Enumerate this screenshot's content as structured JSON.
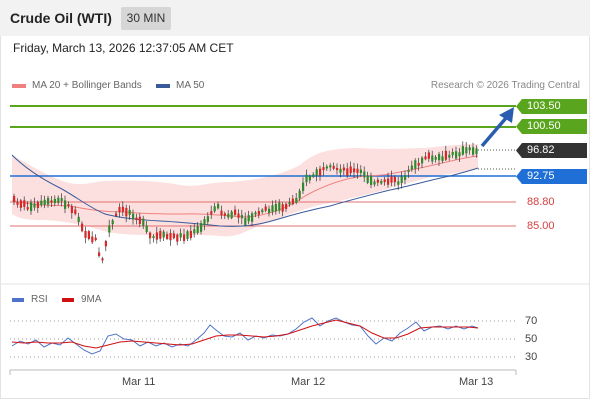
{
  "header": {
    "title": "Crude Oil (WTI)",
    "interval": "30 MIN"
  },
  "timestamp": "Friday, March 13, 2026 12:37:05 AM CET",
  "legend": {
    "ma20": {
      "label": "MA 20 + Bollinger Bands",
      "color": "#f08080"
    },
    "ma50": {
      "label": "MA 50",
      "color": "#3a5a9a"
    }
  },
  "copyright": "Research © 2026 Trading Central",
  "price_levels": [
    {
      "value": "103.50",
      "kind": "target",
      "color": "#5aa51e"
    },
    {
      "value": "100.50",
      "kind": "resistance",
      "color": "#5aa51e"
    },
    {
      "value": "96.82",
      "kind": "last",
      "color": "#333333"
    },
    {
      "value": "92.75",
      "kind": "pivot",
      "color": "#1f6fd6"
    },
    {
      "value": "88.80",
      "kind": "support",
      "color": "#d94040"
    },
    {
      "value": "85.00",
      "kind": "support",
      "color": "#d94040"
    }
  ],
  "rsi_legend": {
    "rsi": {
      "label": "RSI",
      "color": "#4f73c9"
    },
    "ma9": {
      "label": "9MA",
      "color": "#d01010"
    }
  },
  "rsi_axis": [
    "70",
    "50",
    "30"
  ],
  "dates": [
    "Mar 11",
    "Mar 12",
    "Mar 13"
  ],
  "colors": {
    "up": "#2d8a2d",
    "down": "#d62828",
    "band": "#fbd6d6",
    "arrow": "#2a5db0"
  }
}
